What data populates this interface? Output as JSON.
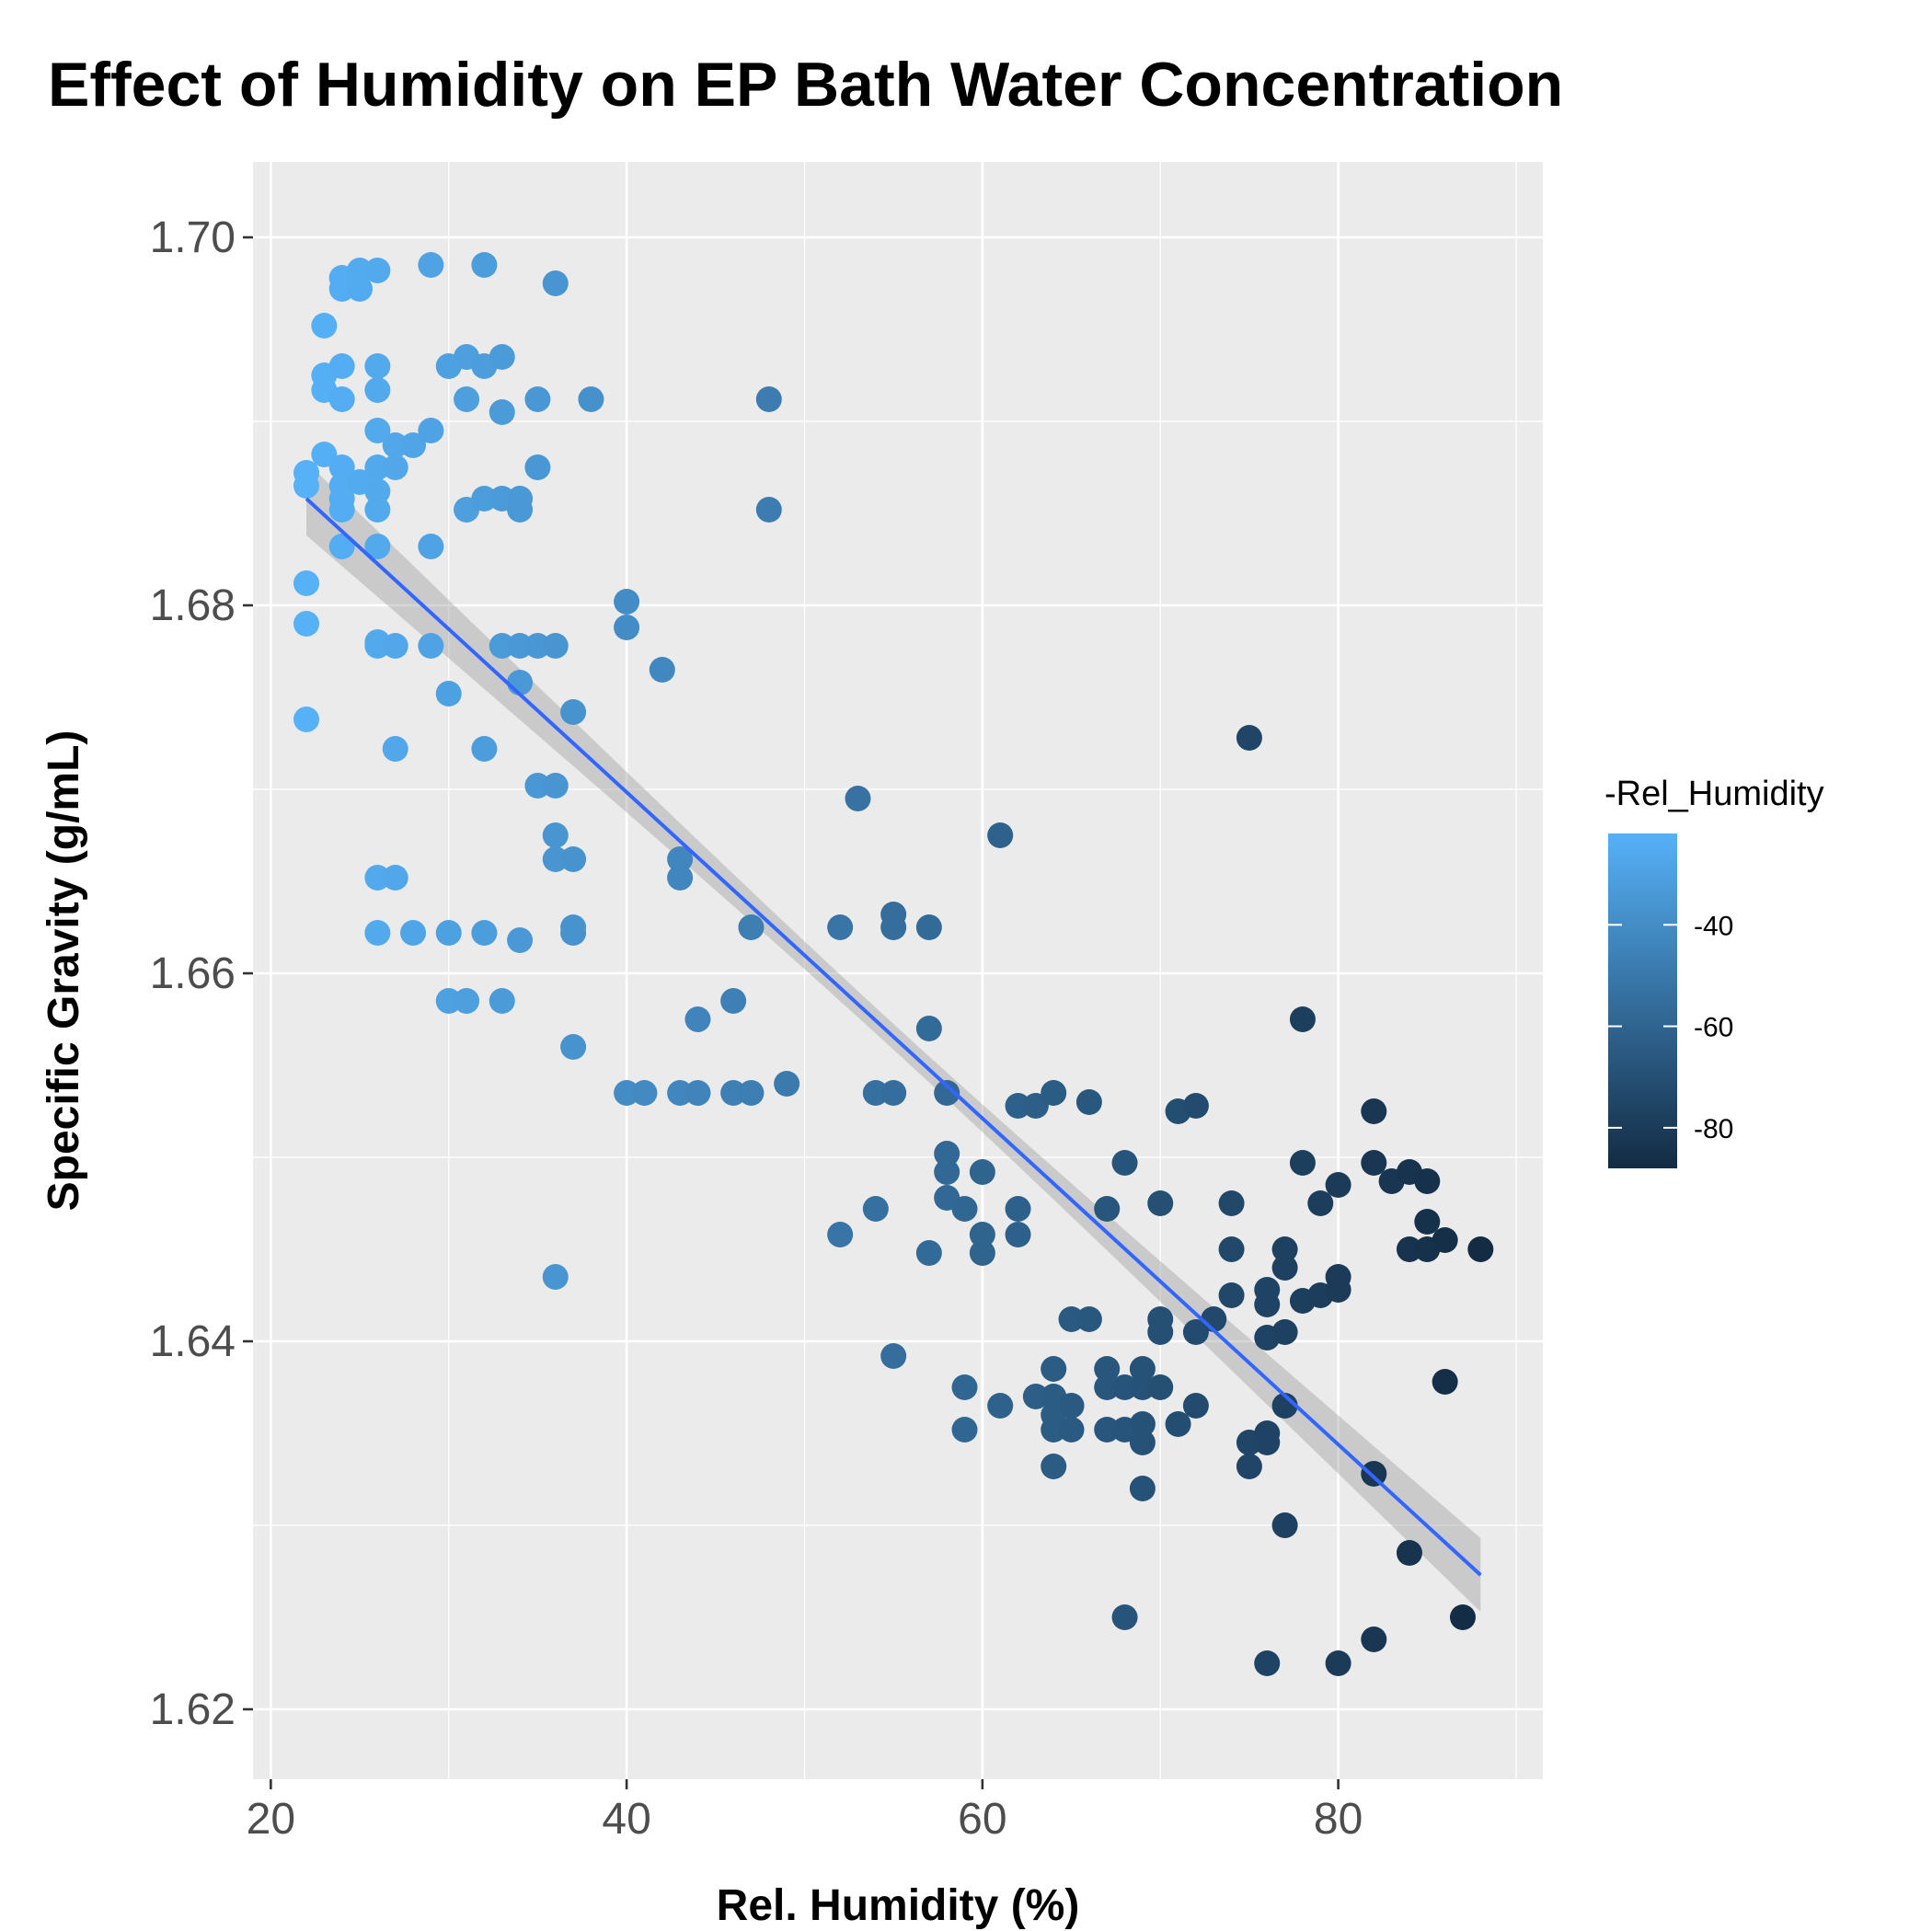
{
  "chart_data": {
    "type": "scatter",
    "title": "Effect of Humidity on EP Bath Water Concentration",
    "xlabel": "Rel. Humidity (%)",
    "ylabel": "Specific Gravity (g/mL)",
    "xlim": [
      19,
      91.5
    ],
    "ylim": [
      1.6162,
      1.7041
    ],
    "x_ticks": [
      20,
      40,
      60,
      80
    ],
    "y_ticks": [
      1.62,
      1.64,
      1.66,
      1.68,
      1.7
    ],
    "x_tick_labels": [
      "20",
      "40",
      "60",
      "80"
    ],
    "y_tick_labels": [
      "1.62",
      "1.64",
      "1.66",
      "1.68",
      "1.70"
    ],
    "grid": true,
    "legend": {
      "title": "-Rel_Humidity",
      "position": "right",
      "type": "colorbar",
      "labels": [
        "-40",
        "-60",
        "-80"
      ],
      "breaks": [
        -40,
        -60,
        -80
      ],
      "range": [
        -88,
        -22
      ],
      "low_color": "#132B43",
      "high_color": "#56B1F7"
    },
    "color_variable": "-Rel_Humidity",
    "point_color_low": "#132B43",
    "point_color_high": "#56B1F7",
    "trend": {
      "method": "linear",
      "x": [
        22,
        88
      ],
      "y": [
        1.6858,
        1.6273
      ],
      "ci_lower": [
        1.6838,
        1.6249
      ],
      "ci_upper": [
        1.6878,
        1.6297
      ],
      "ci_mid_halfwidth": 0.0007,
      "line_color": "#3366FF",
      "band_color": "#999999"
    },
    "points": [
      [
        22,
        1.6865
      ],
      [
        22,
        1.6872
      ],
      [
        22,
        1.6812
      ],
      [
        22,
        1.679
      ],
      [
        22,
        1.6738
      ],
      [
        23,
        1.6952
      ],
      [
        23,
        1.6925
      ],
      [
        23,
        1.6917
      ],
      [
        23,
        1.6882
      ],
      [
        24,
        1.6978
      ],
      [
        24,
        1.6972
      ],
      [
        24,
        1.693
      ],
      [
        24,
        1.6912
      ],
      [
        24,
        1.6875
      ],
      [
        24,
        1.6865
      ],
      [
        24,
        1.6858
      ],
      [
        24,
        1.6852
      ],
      [
        24,
        1.6832
      ],
      [
        25,
        1.6982
      ],
      [
        25,
        1.6972
      ],
      [
        25,
        1.6867
      ],
      [
        26,
        1.6982
      ],
      [
        26,
        1.693
      ],
      [
        26,
        1.6917
      ],
      [
        26,
        1.6895
      ],
      [
        26,
        1.6875
      ],
      [
        26,
        1.6862
      ],
      [
        26,
        1.6852
      ],
      [
        26,
        1.6832
      ],
      [
        26,
        1.678
      ],
      [
        26,
        1.6778
      ],
      [
        26,
        1.6652
      ],
      [
        26,
        1.6622
      ],
      [
        27,
        1.6887
      ],
      [
        27,
        1.6875
      ],
      [
        27,
        1.6778
      ],
      [
        27,
        1.6722
      ],
      [
        27,
        1.6652
      ],
      [
        28,
        1.6887
      ],
      [
        28,
        1.6622
      ],
      [
        29,
        1.6985
      ],
      [
        29,
        1.6895
      ],
      [
        29,
        1.6832
      ],
      [
        29,
        1.6778
      ],
      [
        30,
        1.693
      ],
      [
        30,
        1.6752
      ],
      [
        30,
        1.6622
      ],
      [
        30,
        1.6585
      ],
      [
        31,
        1.6935
      ],
      [
        31,
        1.6912
      ],
      [
        31,
        1.6852
      ],
      [
        31,
        1.6585
      ],
      [
        32,
        1.6985
      ],
      [
        32,
        1.693
      ],
      [
        32,
        1.6858
      ],
      [
        32,
        1.6722
      ],
      [
        32,
        1.6622
      ],
      [
        33,
        1.6935
      ],
      [
        33,
        1.6905
      ],
      [
        33,
        1.6858
      ],
      [
        33,
        1.6778
      ],
      [
        33,
        1.6585
      ],
      [
        34,
        1.6858
      ],
      [
        34,
        1.6852
      ],
      [
        34,
        1.6778
      ],
      [
        34,
        1.6758
      ],
      [
        34,
        1.6618
      ],
      [
        35,
        1.6912
      ],
      [
        35,
        1.6875
      ],
      [
        35,
        1.6778
      ],
      [
        35,
        1.6702
      ],
      [
        36,
        1.6975
      ],
      [
        36,
        1.6778
      ],
      [
        36,
        1.6702
      ],
      [
        36,
        1.6675
      ],
      [
        36,
        1.6662
      ],
      [
        36,
        1.6435
      ],
      [
        37,
        1.6742
      ],
      [
        37,
        1.6662
      ],
      [
        37,
        1.6625
      ],
      [
        37,
        1.6622
      ],
      [
        37,
        1.656
      ],
      [
        38,
        1.6912
      ],
      [
        40,
        1.6802
      ],
      [
        40,
        1.6788
      ],
      [
        40,
        1.6535
      ],
      [
        41,
        1.6535
      ],
      [
        42,
        1.6765
      ],
      [
        43,
        1.6662
      ],
      [
        43,
        1.6652
      ],
      [
        43,
        1.6535
      ],
      [
        44,
        1.6575
      ],
      [
        44,
        1.6535
      ],
      [
        46,
        1.6585
      ],
      [
        46,
        1.6535
      ],
      [
        47,
        1.6625
      ],
      [
        47,
        1.6535
      ],
      [
        48,
        1.6912
      ],
      [
        48,
        1.6852
      ],
      [
        49,
        1.654
      ],
      [
        52,
        1.6625
      ],
      [
        52,
        1.6458
      ],
      [
        53,
        1.6695
      ],
      [
        54,
        1.6535
      ],
      [
        54,
        1.6472
      ],
      [
        55,
        1.6632
      ],
      [
        55,
        1.6625
      ],
      [
        55,
        1.6535
      ],
      [
        55,
        1.6392
      ],
      [
        57,
        1.6625
      ],
      [
        57,
        1.657
      ],
      [
        57,
        1.6448
      ],
      [
        58,
        1.6535
      ],
      [
        58,
        1.6502
      ],
      [
        58,
        1.6492
      ],
      [
        58,
        1.6478
      ],
      [
        59,
        1.6472
      ],
      [
        59,
        1.6375
      ],
      [
        59,
        1.6352
      ],
      [
        60,
        1.6492
      ],
      [
        60,
        1.6458
      ],
      [
        60,
        1.6448
      ],
      [
        61,
        1.6675
      ],
      [
        61,
        1.6365
      ],
      [
        62,
        1.6528
      ],
      [
        62,
        1.6472
      ],
      [
        62,
        1.6458
      ],
      [
        63,
        1.6528
      ],
      [
        63,
        1.637
      ],
      [
        64,
        1.6535
      ],
      [
        64,
        1.6385
      ],
      [
        64,
        1.637
      ],
      [
        64,
        1.636
      ],
      [
        64,
        1.6352
      ],
      [
        64,
        1.6332
      ],
      [
        65,
        1.6412
      ],
      [
        65,
        1.6365
      ],
      [
        65,
        1.6352
      ],
      [
        66,
        1.653
      ],
      [
        66,
        1.6412
      ],
      [
        67,
        1.6472
      ],
      [
        67,
        1.6385
      ],
      [
        67,
        1.6375
      ],
      [
        67,
        1.6352
      ],
      [
        68,
        1.6497
      ],
      [
        68,
        1.6375
      ],
      [
        68,
        1.6352
      ],
      [
        68,
        1.625
      ],
      [
        69,
        1.6385
      ],
      [
        69,
        1.6375
      ],
      [
        69,
        1.6355
      ],
      [
        69,
        1.6345
      ],
      [
        69,
        1.632
      ],
      [
        70,
        1.6475
      ],
      [
        70,
        1.6412
      ],
      [
        70,
        1.6405
      ],
      [
        70,
        1.6375
      ],
      [
        71,
        1.6525
      ],
      [
        71,
        1.6355
      ],
      [
        72,
        1.6528
      ],
      [
        72,
        1.6405
      ],
      [
        72,
        1.6365
      ],
      [
        73,
        1.6412
      ],
      [
        74,
        1.6475
      ],
      [
        74,
        1.645
      ],
      [
        74,
        1.6425
      ],
      [
        75,
        1.6728
      ],
      [
        75,
        1.6345
      ],
      [
        75,
        1.6332
      ],
      [
        76,
        1.6428
      ],
      [
        76,
        1.642
      ],
      [
        76,
        1.6402
      ],
      [
        76,
        1.635
      ],
      [
        76,
        1.6345
      ],
      [
        76,
        1.6225
      ],
      [
        77,
        1.645
      ],
      [
        77,
        1.644
      ],
      [
        77,
        1.6405
      ],
      [
        77,
        1.6365
      ],
      [
        77,
        1.63
      ],
      [
        78,
        1.6575
      ],
      [
        78,
        1.6497
      ],
      [
        78,
        1.6422
      ],
      [
        79,
        1.6475
      ],
      [
        79,
        1.6425
      ],
      [
        80,
        1.6485
      ],
      [
        80,
        1.6435
      ],
      [
        80,
        1.6428
      ],
      [
        80,
        1.6225
      ],
      [
        82,
        1.6525
      ],
      [
        82,
        1.6497
      ],
      [
        82,
        1.6328
      ],
      [
        82,
        1.6238
      ],
      [
        83,
        1.6487
      ],
      [
        84,
        1.6492
      ],
      [
        84,
        1.645
      ],
      [
        84,
        1.6285
      ],
      [
        85,
        1.6487
      ],
      [
        85,
        1.6465
      ],
      [
        85,
        1.645
      ],
      [
        86,
        1.6455
      ],
      [
        86,
        1.6378
      ],
      [
        87,
        1.625
      ],
      [
        88,
        1.645
      ]
    ]
  }
}
